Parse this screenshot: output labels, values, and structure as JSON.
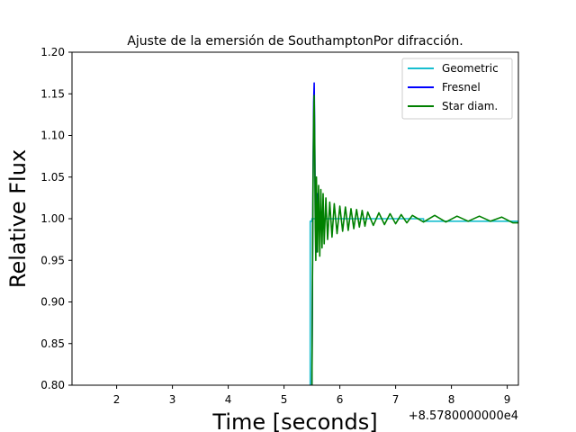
{
  "chart_data": {
    "type": "line",
    "title": "Ajuste de la emersión de SouthamptonPor difracción.",
    "xlabel": "Time [seconds]",
    "ylabel": "Relative Flux",
    "x_offset_label": "+8.5780000000e4",
    "xlim": [
      1.2,
      9.2
    ],
    "ylim": [
      0.8,
      1.2
    ],
    "x_ticks": [
      2,
      3,
      4,
      5,
      6,
      7,
      8,
      9
    ],
    "x_tick_labels": [
      "2",
      "3",
      "4",
      "5",
      "6",
      "7",
      "8",
      "9"
    ],
    "y_ticks": [
      0.8,
      0.85,
      0.9,
      0.95,
      1.0,
      1.05,
      1.1,
      1.15,
      1.2
    ],
    "y_tick_labels": [
      "0.80",
      "0.85",
      "0.90",
      "0.95",
      "1.00",
      "1.05",
      "1.10",
      "1.15",
      "1.20"
    ],
    "grid": false,
    "legend_position": "top-right",
    "series": [
      {
        "name": "Geometric",
        "color": "#17becf",
        "x": [
          5.46,
          5.47,
          5.47,
          5.5,
          5.5,
          7.5,
          7.5,
          9.2
        ],
        "y": [
          0.8,
          0.8,
          0.997,
          0.997,
          1.0,
          1.0,
          0.997,
          0.997
        ]
      },
      {
        "name": "Fresnel",
        "color": "#0000ff",
        "x": [
          5.5,
          5.51,
          5.52,
          5.53,
          5.54,
          5.55,
          5.56,
          5.58,
          5.6,
          5.62
        ],
        "y": [
          0.8,
          0.93,
          1.05,
          1.14,
          1.163,
          1.1,
          1.0,
          0.96,
          1.03,
          0.99
        ]
      },
      {
        "name": "Star diam.",
        "color": "#008000",
        "x": [
          5.5,
          5.51,
          5.52,
          5.53,
          5.54,
          5.55,
          5.56,
          5.57,
          5.58,
          5.6,
          5.62,
          5.64,
          5.66,
          5.68,
          5.7,
          5.72,
          5.75,
          5.78,
          5.82,
          5.86,
          5.9,
          5.95,
          6.0,
          6.05,
          6.1,
          6.15,
          6.2,
          6.25,
          6.3,
          6.35,
          6.4,
          6.45,
          6.5,
          6.6,
          6.7,
          6.8,
          6.9,
          7.0,
          7.1,
          7.2,
          7.3,
          7.5,
          7.7,
          7.9,
          8.1,
          8.3,
          8.5,
          8.7,
          8.9,
          9.1,
          9.2
        ],
        "y": [
          0.8,
          0.93,
          1.04,
          1.12,
          1.148,
          1.09,
          0.99,
          0.95,
          1.05,
          0.96,
          1.04,
          0.955,
          1.035,
          0.965,
          1.03,
          0.97,
          1.025,
          0.975,
          1.02,
          0.978,
          1.018,
          0.982,
          1.015,
          0.985,
          1.014,
          0.986,
          1.012,
          0.988,
          1.011,
          0.99,
          1.01,
          0.991,
          1.008,
          0.992,
          1.007,
          0.993,
          1.006,
          0.994,
          1.005,
          0.995,
          1.004,
          0.996,
          1.004,
          0.996,
          1.003,
          0.997,
          1.003,
          0.997,
          1.002,
          0.995,
          0.995
        ]
      }
    ]
  }
}
